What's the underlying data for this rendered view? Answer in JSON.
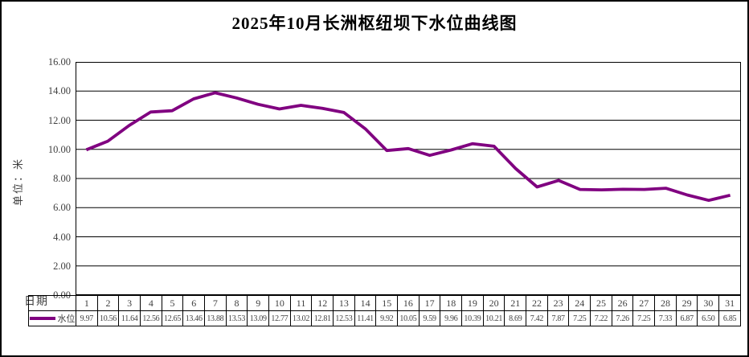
{
  "title": "2025年10月长洲枢纽坝下水位曲线图",
  "chart_data": {
    "type": "line",
    "title": "2025年10月长洲枢纽坝下水位曲线图",
    "xlabel": "日期",
    "ylabel": "单位：米",
    "ylim": [
      0,
      16
    ],
    "y_tick_step": 2,
    "grid": true,
    "legend_position": "table-left",
    "series": [
      {
        "name": "水位",
        "color": "#800080",
        "x": [
          1,
          2,
          3,
          4,
          5,
          6,
          7,
          8,
          9,
          10,
          11,
          12,
          13,
          14,
          15,
          16,
          17,
          18,
          19,
          20,
          21,
          22,
          23,
          24,
          25,
          26,
          27,
          28,
          29,
          30,
          31
        ],
        "values": [
          9.97,
          10.56,
          11.64,
          12.56,
          12.65,
          13.46,
          13.88,
          13.53,
          13.09,
          12.77,
          13.02,
          12.81,
          12.53,
          11.41,
          9.92,
          10.05,
          9.59,
          9.96,
          10.39,
          10.21,
          8.69,
          7.42,
          7.87,
          7.25,
          7.22,
          7.26,
          7.25,
          7.33,
          6.87,
          6.5,
          6.85
        ]
      }
    ]
  },
  "axis": {
    "y_tick_labels": [
      "16.00",
      "14.00",
      "12.00",
      "10.00",
      "8.00",
      "6.00",
      "4.00",
      "2.00",
      "0.00"
    ]
  },
  "table": {
    "legend_label": "水位",
    "days": [
      "1",
      "2",
      "3",
      "4",
      "5",
      "6",
      "7",
      "8",
      "9",
      "10",
      "11",
      "12",
      "13",
      "14",
      "15",
      "16",
      "17",
      "18",
      "19",
      "20",
      "21",
      "22",
      "23",
      "24",
      "25",
      "26",
      "27",
      "28",
      "29",
      "30",
      "31"
    ],
    "values": [
      "9.97",
      "10.56",
      "11.64",
      "12.56",
      "12.65",
      "13.46",
      "13.88",
      "13.53",
      "13.09",
      "12.77",
      "13.02",
      "12.81",
      "12.53",
      "11.41",
      "9.92",
      "10.05",
      "9.59",
      "9.96",
      "10.39",
      "10.21",
      "8.69",
      "7.42",
      "7.87",
      "7.25",
      "7.22",
      "7.26",
      "7.25",
      "7.33",
      "6.87",
      "6.50",
      "6.85"
    ]
  },
  "colors": {
    "line": "#800080",
    "grid": "#000000",
    "text": "#3f3f3f"
  }
}
